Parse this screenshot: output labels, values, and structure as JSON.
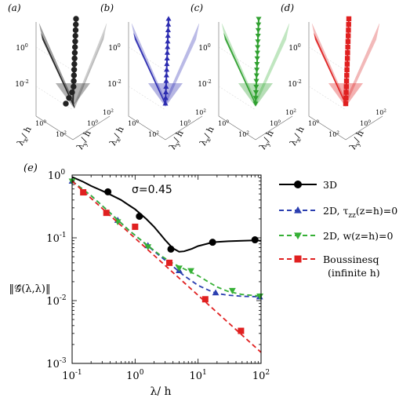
{
  "panels": [
    {
      "letter": "(a)",
      "color": "#222222",
      "light": "#cfcfcf",
      "marker": "circle"
    },
    {
      "letter": "(b)",
      "color": "#2b2bb0",
      "light": "#b9b9e6",
      "marker": "triangle-up"
    },
    {
      "letter": "(c)",
      "color": "#2fa02f",
      "light": "#bfe6bf",
      "marker": "triangle-down"
    },
    {
      "letter": "(d)",
      "color": "#e02020",
      "light": "#f2b8b8",
      "marker": "square"
    }
  ],
  "surface_axis": {
    "z_ticks": [
      "10",
      "10"
    ],
    "z_exps": [
      "0",
      "-2"
    ],
    "xy_ticks": [
      "10",
      "10"
    ],
    "xy_exps": [
      "0",
      "2"
    ],
    "x_label": "λ",
    "x_sub": "x",
    "y_label": "λ",
    "y_sub": "y",
    "per": "/ h"
  },
  "main": {
    "letter": "(e)",
    "annotation": "σ=0.45",
    "y_axis_label": "‖𝒢̂(λ,λ)‖",
    "x_axis_label": "λ/ h"
  },
  "chart_data": {
    "type": "line",
    "title": "",
    "xlabel": "λ/ h",
    "ylabel": "‖𝒢̂(λ,λ)‖",
    "xscale": "log",
    "yscale": "log",
    "xlim": [
      0.1,
      100
    ],
    "ylim": [
      0.001,
      1
    ],
    "x_ticks": [
      "10",
      "10",
      "10",
      "10"
    ],
    "x_tick_exps": [
      "-1",
      "0",
      "1",
      "2"
    ],
    "y_ticks": [
      "10",
      "10",
      "10",
      "10"
    ],
    "y_tick_exps": [
      "-3",
      "-2",
      "-1",
      "0"
    ],
    "legend_position": "right",
    "series": [
      {
        "name": "3D",
        "color": "#000000",
        "marker": "circle",
        "dash": "solid",
        "curve_x": [
          0.1,
          0.15,
          0.2,
          0.3,
          0.4,
          0.6,
          0.8,
          1.0,
          1.5,
          2.0,
          2.5,
          3.0,
          3.5,
          4.0,
          5.0,
          6.0,
          8.0,
          10.0,
          15.0,
          20.0,
          30.0,
          50.0,
          80.0,
          100.0
        ],
        "curve_y": [
          0.93,
          0.78,
          0.67,
          0.56,
          0.49,
          0.4,
          0.33,
          0.285,
          0.2,
          0.15,
          0.115,
          0.092,
          0.078,
          0.068,
          0.06,
          0.061,
          0.067,
          0.074,
          0.082,
          0.086,
          0.088,
          0.09,
          0.091,
          0.09
        ],
        "marker_x": [
          0.37,
          1.17,
          3.7,
          17,
          80
        ],
        "marker_y": [
          0.54,
          0.22,
          0.066,
          0.085,
          0.093
        ]
      },
      {
        "name": "2D, τzz(z=h)=0",
        "label_main": "2D, τ",
        "label_sub": "zz",
        "label_rest": "(z=h)=0",
        "color": "#2b3fb0",
        "marker": "triangle-up",
        "dash": "dashed",
        "curve_x": [
          0.1,
          0.2,
          0.4,
          0.8,
          1.5,
          2.5,
          4.0,
          6.0,
          10.0,
          15.0,
          20.0,
          30.0,
          50.0,
          100.0
        ],
        "curve_y": [
          0.8,
          0.47,
          0.25,
          0.132,
          0.078,
          0.051,
          0.035,
          0.025,
          0.0175,
          0.0145,
          0.013,
          0.0122,
          0.0117,
          0.0115
        ],
        "marker_x": [
          0.1,
          0.53,
          1.6,
          5.0,
          19,
          95
        ],
        "marker_y": [
          0.8,
          0.19,
          0.075,
          0.03,
          0.0133,
          0.0115
        ]
      },
      {
        "name": "2D, w(z=h)=0",
        "color": "#36b036",
        "marker": "triangle-down",
        "dash": "dashed",
        "curve_x": [
          0.1,
          0.2,
          0.4,
          0.8,
          1.5,
          2.5,
          4.0,
          6.0,
          10.0,
          15.0,
          20.0,
          30.0,
          50.0,
          100.0
        ],
        "curve_y": [
          0.8,
          0.47,
          0.25,
          0.132,
          0.079,
          0.053,
          0.039,
          0.032,
          0.025,
          0.0195,
          0.0165,
          0.014,
          0.0125,
          0.0118
        ],
        "marker_x": [
          0.1,
          0.53,
          1.6,
          5.0,
          7.7,
          35,
          96
        ],
        "marker_y": [
          0.8,
          0.18,
          0.072,
          0.033,
          0.03,
          0.0145,
          0.0118
        ]
      },
      {
        "name": "Boussinesq (infinite h)",
        "label_line1": "Boussinesq",
        "label_line2": "(infinite h)",
        "color": "#e02020",
        "marker": "square",
        "dash": "dashed",
        "curve_x": [
          0.1,
          100.0
        ],
        "curve_y": [
          0.8,
          0.0015
        ],
        "marker_x": [
          0.15,
          0.35,
          1.0,
          3.5,
          13,
          48
        ],
        "marker_y": [
          0.53,
          0.25,
          0.15,
          0.04,
          0.0105,
          0.0033
        ]
      }
    ]
  }
}
